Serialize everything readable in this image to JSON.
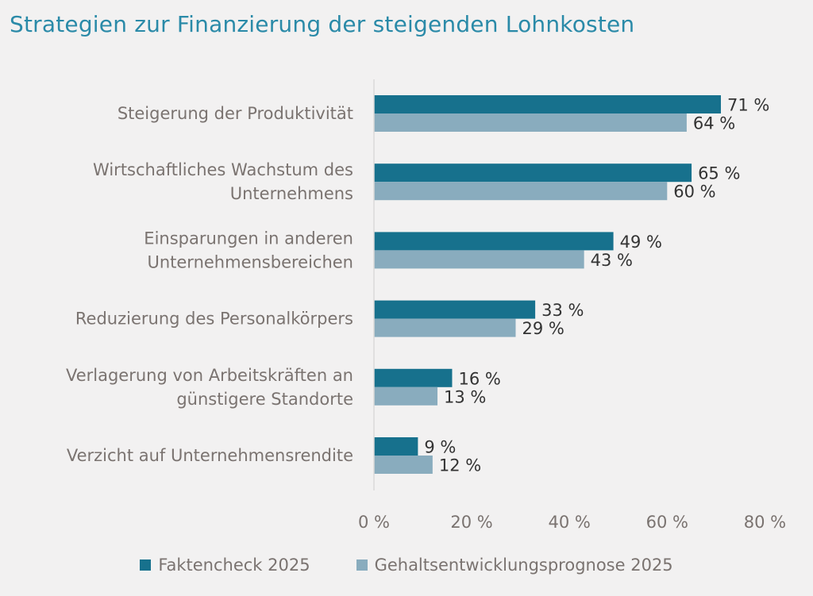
{
  "title": "Strategien zur Finanzierung der steigenden Lohnkosten",
  "colors": {
    "series1": "#17718d",
    "series2": "#89acbe",
    "title": "#2a8aa8",
    "axis": "#d9d9d9"
  },
  "chart_data": {
    "type": "bar",
    "orientation": "horizontal",
    "title": "Strategien zur Finanzierung der steigenden Lohnkosten",
    "categories": [
      [
        "Steigerung der Produktivität"
      ],
      [
        "Wirtschaftliches Wachstum des",
        "Unternehmens"
      ],
      [
        "Einsparungen in anderen",
        "Unternehmensbereichen"
      ],
      [
        "Reduzierung des Personalkörpers"
      ],
      [
        "Verlagerung von Arbeitskräften an",
        "günstigere Standorte"
      ],
      [
        "Verzicht auf Unternehmensrendite"
      ]
    ],
    "series": [
      {
        "name": "Faktencheck 2025",
        "values": [
          71,
          65,
          49,
          33,
          16,
          9
        ],
        "labels": [
          "71 %",
          "65 %",
          "49 %",
          "33 %",
          "16 %",
          "9 %"
        ]
      },
      {
        "name": "Gehaltsentwicklungsprognose 2025",
        "values": [
          64,
          60,
          43,
          29,
          13,
          12
        ],
        "labels": [
          "64 %",
          "60 %",
          "43 %",
          "29 %",
          "13 %",
          "12 %"
        ]
      }
    ],
    "xlim": [
      0,
      80
    ],
    "xticks": [
      0,
      20,
      40,
      60,
      80
    ],
    "xtick_labels": [
      "0 %",
      "20 %",
      "40 %",
      "60 %",
      "80 %"
    ],
    "grid": false,
    "legend_position": "bottom"
  }
}
